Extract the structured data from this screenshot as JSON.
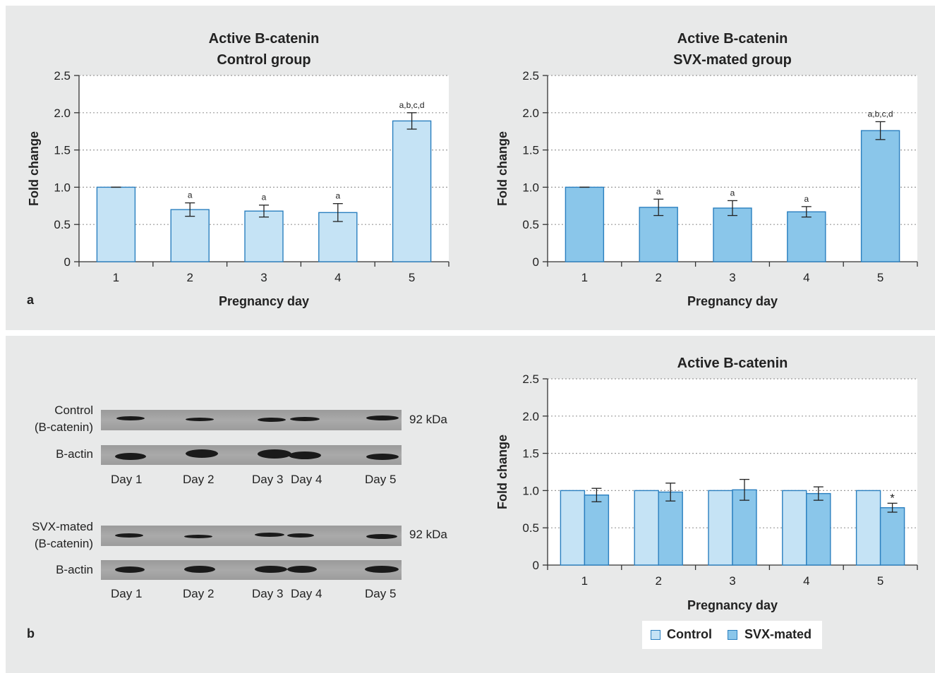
{
  "panels": {
    "a_label": "a",
    "b_label": "b"
  },
  "colors": {
    "control_fill": "#c5e3f5",
    "svx_fill": "#8ac6ea",
    "bar_stroke": "#2a7fbf",
    "grid": "#9a9a9a"
  },
  "chart_data": [
    {
      "type": "bar",
      "title_lines": [
        "Active B-catenin",
        "Control group"
      ],
      "xlabel": "Pregnancy day",
      "ylabel": "Fold change",
      "categories": [
        "1",
        "2",
        "3",
        "4",
        "5"
      ],
      "ylim": [
        0,
        2.5
      ],
      "yticks": [
        "0",
        "0.5",
        "1.0",
        "1.5",
        "2.0",
        "2.5"
      ],
      "grid": "horizontal dotted",
      "series": [
        {
          "values": [
            1.0,
            0.7,
            0.68,
            0.66,
            1.89
          ],
          "errors": [
            0.0,
            0.09,
            0.08,
            0.12,
            0.11
          ]
        }
      ],
      "annotations": [
        "",
        "a",
        "a",
        "a",
        "a,b,c,d"
      ]
    },
    {
      "type": "bar",
      "title_lines": [
        "Active B-catenin",
        "SVX-mated group"
      ],
      "xlabel": "Pregnancy day",
      "ylabel": "Fold change",
      "categories": [
        "1",
        "2",
        "3",
        "4",
        "5"
      ],
      "ylim": [
        0,
        2.5
      ],
      "yticks": [
        "0",
        "0.5",
        "1.0",
        "1.5",
        "2.0",
        "2.5"
      ],
      "grid": "horizontal dotted",
      "series": [
        {
          "values": [
            1.0,
            0.73,
            0.72,
            0.67,
            1.76
          ],
          "errors": [
            0.0,
            0.11,
            0.1,
            0.07,
            0.12
          ]
        }
      ],
      "annotations": [
        "",
        "a",
        "a",
        "a",
        "a,b,c,d"
      ]
    },
    {
      "type": "bar",
      "title_lines": [
        "Active B-catenin"
      ],
      "xlabel": "Pregnancy day",
      "ylabel": "Fold change",
      "categories": [
        "1",
        "2",
        "3",
        "4",
        "5"
      ],
      "ylim": [
        0,
        2.5
      ],
      "yticks": [
        "0",
        "0.5",
        "1.0",
        "1.5",
        "2.0",
        "2.5"
      ],
      "grid": "horizontal dotted",
      "legend_position": "bottom",
      "series": [
        {
          "name": "Control",
          "values": [
            1.0,
            1.0,
            1.0,
            1.0,
            1.0
          ],
          "errors": [
            0,
            0,
            0,
            0,
            0
          ]
        },
        {
          "name": "SVX-mated",
          "values": [
            0.94,
            0.98,
            1.01,
            0.96,
            0.77
          ],
          "errors": [
            0.09,
            0.12,
            0.14,
            0.09,
            0.06
          ]
        }
      ],
      "annotations": [
        "",
        "",
        "",
        "",
        "*"
      ]
    }
  ],
  "blot": {
    "control_label_lines": [
      "Control",
      "(B-catenin)"
    ],
    "svx_label_lines": [
      "SVX-mated",
      "(B-catenin)"
    ],
    "actin_label": "B-actin",
    "kda": "92 kDa",
    "days": [
      "Day 1",
      "Day 2",
      "Day 3",
      "Day 4",
      "Day 5"
    ]
  }
}
